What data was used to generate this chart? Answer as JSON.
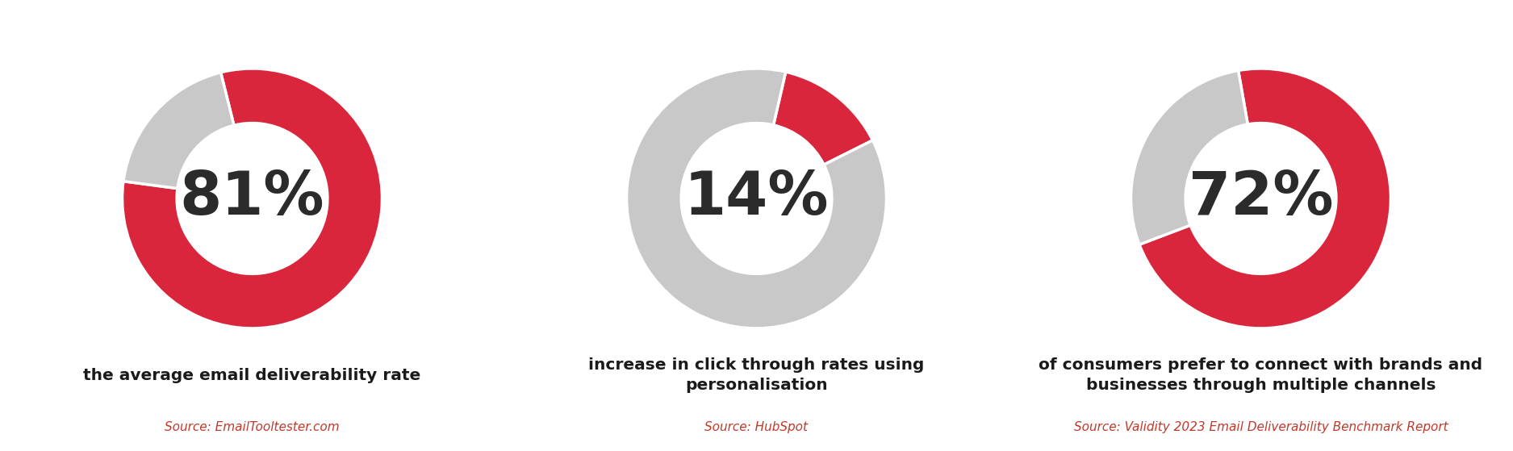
{
  "charts": [
    {
      "percentage": 81,
      "value_label": "81%",
      "red_color": "#d9263c",
      "grey_color": "#c8c8c8",
      "start_angle": 104,
      "counterclock": false,
      "description": "the average email deliverability rate",
      "source": "Source: EmailTooltester.com"
    },
    {
      "percentage": 14,
      "value_label": "14%",
      "red_color": "#d9263c",
      "grey_color": "#c8c8c8",
      "start_angle": 77,
      "counterclock": false,
      "description": "increase in click through rates using\npersonalisation",
      "source": "Source: HubSpot"
    },
    {
      "percentage": 72,
      "value_label": "72%",
      "red_color": "#d9263c",
      "grey_color": "#c8c8c8",
      "start_angle": 100,
      "counterclock": false,
      "description": "of consumers prefer to connect with brands and\nbusinesses through multiple channels",
      "source": "Source: Validity 2023 Email Deliverability Benchmark Report"
    }
  ],
  "bg_color": "#ffffff",
  "value_fontsize": 54,
  "value_color": "#2b2b2b",
  "desc_fontsize": 14.5,
  "desc_color": "#1a1a1a",
  "source_fontsize": 11,
  "source_color": "#c0392b",
  "donut_width": 0.42,
  "figsize": [
    18.75,
    5.59
  ]
}
